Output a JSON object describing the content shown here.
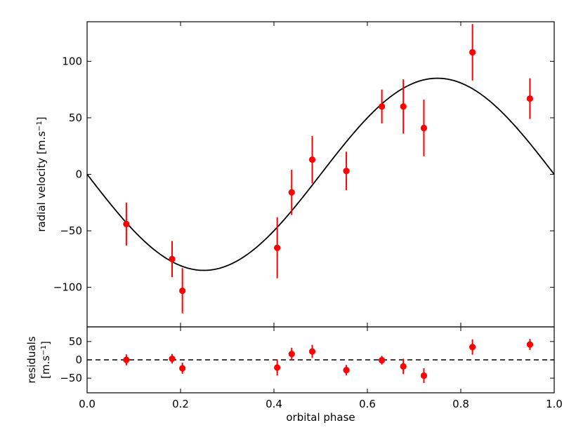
{
  "chart_data": [
    {
      "type": "scatter",
      "title": "",
      "xlabel": "",
      "ylabel_main": "radial velocity [m.s",
      "ylabel_sup": "−1",
      "ylabel_end": "]",
      "xlim": [
        0.0,
        1.0
      ],
      "ylim": [
        -135,
        135
      ],
      "yticks": [
        100,
        50,
        0,
        -50,
        -100
      ],
      "ytick_labels": [
        "100",
        "50",
        "0",
        "−50",
        "−100"
      ],
      "grid": false,
      "model_curve": {
        "amplitude": 85,
        "phase_shift": 0.0,
        "color": "#000000"
      },
      "points": [
        {
          "x": 0.084,
          "y": -44,
          "err": 19
        },
        {
          "x": 0.182,
          "y": -75,
          "err": 16
        },
        {
          "x": 0.204,
          "y": -103,
          "err": 20
        },
        {
          "x": 0.407,
          "y": -65,
          "err": 27
        },
        {
          "x": 0.438,
          "y": -16,
          "err": 20
        },
        {
          "x": 0.482,
          "y": 13,
          "err": 21
        },
        {
          "x": 0.555,
          "y": 3,
          "err": 17
        },
        {
          "x": 0.631,
          "y": 60,
          "err": 15
        },
        {
          "x": 0.677,
          "y": 60,
          "err": 24
        },
        {
          "x": 0.721,
          "y": 41,
          "err": 25
        },
        {
          "x": 0.825,
          "y": 108,
          "err": 25
        },
        {
          "x": 0.948,
          "y": 67,
          "err": 18
        }
      ],
      "point_color": "#ff0000"
    },
    {
      "type": "scatter",
      "title": "",
      "xlabel": "orbital phase",
      "ylabel_line1": "residuals",
      "ylabel_line2_main": "[m.s",
      "ylabel_line2_sup": "−1",
      "ylabel_line2_end": "]",
      "xlim": [
        0.0,
        1.0
      ],
      "ylim": [
        -90,
        90
      ],
      "yticks": [
        50,
        0,
        -50
      ],
      "ytick_labels": [
        "50",
        "0",
        "−50"
      ],
      "xticks": [
        0.0,
        0.2,
        0.4,
        0.6,
        0.8,
        1.0
      ],
      "xtick_labels": [
        "0.0",
        "0.2",
        "0.4",
        "0.6",
        "0.8",
        "1.0"
      ],
      "zero_line": {
        "y": 0,
        "style": "dashed",
        "color": "#000000"
      },
      "points": [
        {
          "x": 0.084,
          "y": 0,
          "err": 15
        },
        {
          "x": 0.182,
          "y": 3,
          "err": 13
        },
        {
          "x": 0.204,
          "y": -23,
          "err": 15
        },
        {
          "x": 0.407,
          "y": -21,
          "err": 22
        },
        {
          "x": 0.438,
          "y": 16,
          "err": 17
        },
        {
          "x": 0.482,
          "y": 23,
          "err": 18
        },
        {
          "x": 0.555,
          "y": -28,
          "err": 14
        },
        {
          "x": 0.631,
          "y": -1,
          "err": 12
        },
        {
          "x": 0.677,
          "y": -18,
          "err": 21
        },
        {
          "x": 0.721,
          "y": -43,
          "err": 20
        },
        {
          "x": 0.825,
          "y": 35,
          "err": 21
        },
        {
          "x": 0.948,
          "y": 42,
          "err": 15
        }
      ],
      "point_color": "#ff0000"
    }
  ]
}
